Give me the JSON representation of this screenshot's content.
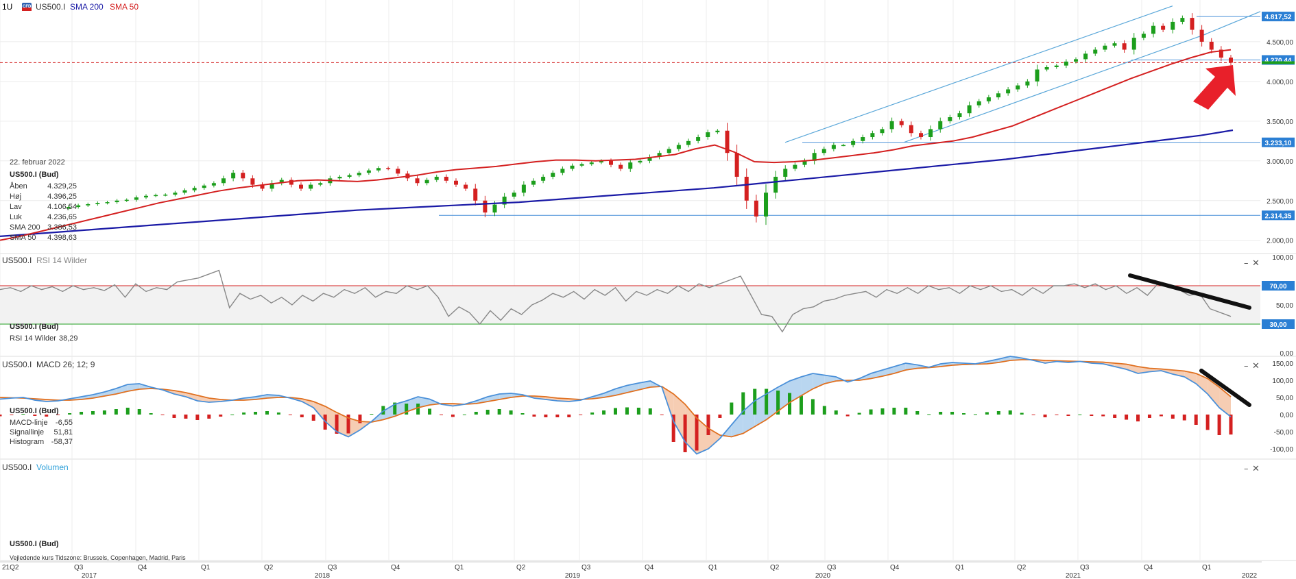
{
  "chart_data": {
    "type": "line",
    "symbol": "US500.I",
    "timeframe": "1U",
    "badge": "CFD",
    "legend": {
      "sma200": "SMA 200",
      "sma50": "SMA 50"
    },
    "colors": {
      "sma200": "#1a1aa6",
      "sma50": "#d42020",
      "up": "#1c9e1c",
      "down": "#d42020",
      "rsi": "#888888",
      "macd": "#4a90d9",
      "signal": "#e07020",
      "channel": "#5aa7d9",
      "hline": "#4a90d9",
      "rsi_upper": "#d42020",
      "rsi_lower": "#1c9e1c",
      "arrow": "#e8202a",
      "trend": "#111111"
    },
    "info_box": {
      "date": "22. februar 2022",
      "title": "US500.I (Bud)",
      "rows": [
        {
          "label": "Åben",
          "value": "4.329,25"
        },
        {
          "label": "Høj",
          "value": "4.396,25"
        },
        {
          "label": "Lav",
          "value": "4.106,54"
        },
        {
          "label": "Luk",
          "value": "4.236,65"
        },
        {
          "label": "SMA 200",
          "value": "3.386,53"
        },
        {
          "label": "SMA 50",
          "value": "4.398,63"
        }
      ]
    },
    "price_axis": {
      "ticks": [
        "4.500,00",
        "4.000,00",
        "3.500,00",
        "3.000,00",
        "2.500,00",
        "2.000,00"
      ],
      "ylim": [
        1920,
        4870
      ]
    },
    "price_markers": [
      {
        "label": "4.817,52",
        "value": 4817.52,
        "color": "#2b7fd4"
      },
      {
        "label": "4.270,44",
        "value": 4270.44,
        "color": "#2b7fd4"
      },
      {
        "label": "3.233,10",
        "value": 3233.1,
        "color": "#2b7fd4"
      },
      {
        "label": "2.314,35",
        "value": 2314.35,
        "color": "#2b7fd4"
      }
    ],
    "rsi": {
      "title": "US500.I",
      "indicator": "RSI 14 Wilder",
      "info_title": "US500.I (Bud)",
      "info_label": "RSI 14 Wilder",
      "info_value": "38,29",
      "ticks": [
        "100,00",
        "50,00",
        "0,00"
      ],
      "levels": [
        {
          "label": "70,00",
          "value": 70
        },
        {
          "label": "30,00",
          "value": 30
        }
      ],
      "values": [
        66,
        68,
        64,
        70,
        66,
        69,
        64,
        70,
        66,
        68,
        65,
        71,
        58,
        72,
        64,
        68,
        66,
        74,
        76,
        78,
        82,
        86,
        47,
        62,
        56,
        60,
        52,
        58,
        50,
        60,
        54,
        62,
        58,
        66,
        62,
        68,
        58,
        64,
        62,
        70,
        66,
        70,
        58,
        38,
        48,
        42,
        30,
        44,
        34,
        46,
        40,
        50,
        55,
        62,
        58,
        64,
        56,
        66,
        60,
        68,
        54,
        64,
        60,
        66,
        62,
        70,
        64,
        72,
        68,
        72,
        76,
        80,
        60,
        40,
        38,
        22,
        40,
        46,
        48,
        54,
        56,
        60,
        62,
        64,
        58,
        66,
        62,
        68,
        62,
        70,
        66,
        68,
        62,
        70,
        66,
        70,
        64,
        66,
        60,
        68,
        62,
        70,
        70,
        72,
        68,
        72,
        66,
        70,
        62,
        68,
        60,
        72,
        70,
        66,
        60,
        62,
        46,
        42,
        38
      ]
    },
    "macd": {
      "title": "US500.I",
      "indicator": "MACD 26; 12; 9",
      "info_title": "US500.I (Bud)",
      "info_rows": [
        {
          "label": "MACD-linje",
          "value": "-6,55",
          "color": "#2b7fd4"
        },
        {
          "label": "Signallinje",
          "value": "51,81",
          "color": "#e07020"
        },
        {
          "label": "Histogram",
          "value": "-58,37",
          "color": "#333333"
        }
      ],
      "ticks": [
        "150,00",
        "100,00",
        "50,00",
        "0,00",
        "-50,00",
        "-100,00"
      ],
      "ylim": [
        -120,
        160
      ],
      "macd": [
        45,
        48,
        50,
        42,
        38,
        40,
        46,
        52,
        58,
        66,
        76,
        88,
        90,
        80,
        72,
        60,
        52,
        40,
        36,
        38,
        42,
        48,
        52,
        58,
        56,
        48,
        38,
        20,
        -20,
        -50,
        -65,
        -45,
        -20,
        10,
        30,
        40,
        52,
        45,
        30,
        25,
        30,
        40,
        52,
        60,
        62,
        58,
        48,
        44,
        40,
        38,
        42,
        52,
        62,
        75,
        85,
        92,
        98,
        80,
        -20,
        -80,
        -115,
        -100,
        -70,
        -30,
        10,
        40,
        60,
        80,
        98,
        110,
        120,
        115,
        110,
        95,
        105,
        120,
        130,
        140,
        150,
        145,
        138,
        148,
        152,
        150,
        148,
        155,
        162,
        170,
        165,
        158,
        150,
        155,
        152,
        155,
        150,
        148,
        140,
        132,
        120,
        125,
        128,
        118,
        110,
        90,
        60,
        20,
        -6.55
      ],
      "signal": [
        50,
        49,
        48,
        46,
        44,
        42,
        42,
        44,
        48,
        54,
        60,
        68,
        74,
        76,
        74,
        70,
        64,
        56,
        48,
        44,
        42,
        42,
        44,
        48,
        50,
        50,
        46,
        38,
        24,
        6,
        -10,
        -20,
        -22,
        -15,
        -5,
        8,
        20,
        28,
        32,
        32,
        30,
        32,
        38,
        44,
        50,
        54,
        54,
        52,
        48,
        46,
        44,
        46,
        50,
        56,
        64,
        72,
        80,
        82,
        60,
        30,
        -10,
        -40,
        -60,
        -65,
        -55,
        -35,
        -15,
        10,
        35,
        55,
        75,
        90,
        98,
        100,
        100,
        105,
        112,
        120,
        130,
        135,
        137,
        140,
        144,
        146,
        147,
        148,
        152,
        158,
        160,
        160,
        158,
        157,
        156,
        155,
        154,
        153,
        150,
        147,
        140,
        135,
        133,
        130,
        127,
        120,
        105,
        80,
        51.81
      ]
    },
    "volume": {
      "title": "US500.I",
      "indicator": "Volumen",
      "info_title": "US500.I (Bud)",
      "tz": "Vejledende kurs    Tidszone: Brussels, Copenhagen, Madrid, Paris"
    },
    "x_axis": {
      "quarters": [
        "Q2",
        "Q3",
        "Q4",
        "Q1",
        "Q2",
        "Q3",
        "Q4",
        "Q1",
        "Q2",
        "Q3",
        "Q4",
        "Q1",
        "Q2",
        "Q3",
        "Q4",
        "Q1",
        "Q2",
        "Q3",
        "Q4",
        "Q1"
      ],
      "years": [
        "2017",
        "2018",
        "2019",
        "2020",
        "2021",
        "2022"
      ],
      "first_quarter_label": "21Q2"
    },
    "price_close": [
      2420,
      2440,
      2455,
      2470,
      2480,
      2500,
      2510,
      2540,
      2560,
      2570,
      2575,
      2600,
      2630,
      2660,
      2690,
      2720,
      2780,
      2850,
      2780,
      2700,
      2650,
      2720,
      2760,
      2700,
      2650,
      2700,
      2720,
      2780,
      2800,
      2820,
      2850,
      2880,
      2910,
      2900,
      2840,
      2780,
      2720,
      2760,
      2800,
      2750,
      2700,
      2650,
      2500,
      2350,
      2450,
      2550,
      2600,
      2700,
      2750,
      2800,
      2850,
      2900,
      2940,
      2960,
      2980,
      3000,
      2950,
      2900,
      2980,
      3000,
      3050,
      3100,
      3150,
      3200,
      3250,
      3300,
      3360,
      3380,
      3100,
      2800,
      2500,
      2300,
      2600,
      2800,
      2900,
      2950,
      3000,
      3100,
      3150,
      3200,
      3200,
      3250,
      3300,
      3350,
      3400,
      3500,
      3450,
      3350,
      3300,
      3400,
      3500,
      3550,
      3600,
      3700,
      3750,
      3800,
      3850,
      3900,
      3950,
      4000,
      4150,
      4180,
      4200,
      4250,
      4280,
      4350,
      4400,
      4450,
      4480,
      4400,
      4550,
      4600,
      4700,
      4650,
      4750,
      4800,
      4650,
      4500,
      4400,
      4300,
      4236.65
    ],
    "sma50": [
      2000,
      2050,
      2110,
      2170,
      2230,
      2290,
      2350,
      2410,
      2470,
      2520,
      2570,
      2620,
      2660,
      2690,
      2720,
      2750,
      2760,
      2750,
      2740,
      2760,
      2790,
      2820,
      2860,
      2890,
      2910,
      2930,
      2960,
      2990,
      3010,
      3010,
      3000,
      3010,
      3020,
      3050,
      3080,
      3150,
      3200,
      3110,
      2990,
      2980,
      2990,
      3010,
      3040,
      3070,
      3100,
      3140,
      3190,
      3220,
      3250,
      3300,
      3370,
      3440,
      3540,
      3640,
      3740,
      3840,
      3940,
      4040,
      4130,
      4220,
      4300,
      4370,
      4398.63
    ],
    "sma200": [
      2050,
      2080,
      2110,
      2140,
      2170,
      2200,
      2230,
      2260,
      2290,
      2320,
      2350,
      2380,
      2400,
      2420,
      2440,
      2460,
      2480,
      2510,
      2540,
      2570,
      2600,
      2630,
      2660,
      2700,
      2740,
      2780,
      2820,
      2860,
      2900,
      2940,
      2980,
      3020,
      3070,
      3120,
      3170,
      3220,
      3270,
      3320,
      3386.53
    ]
  }
}
